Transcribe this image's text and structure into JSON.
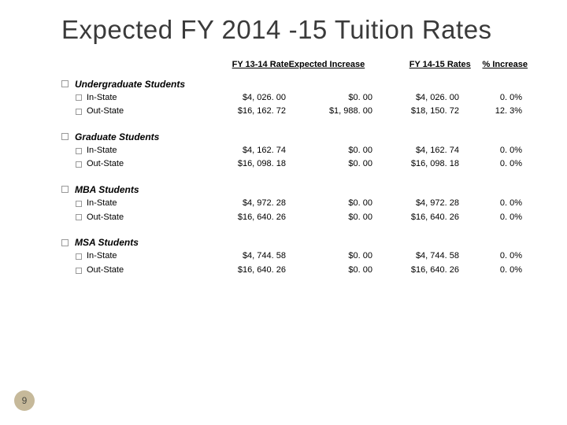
{
  "title": "Expected FY 2014 -15 Tuition Rates",
  "headers": {
    "c1": "FY 13-14 Rate",
    "c2": "Expected Increase",
    "c3": "FY 14-15 Rates",
    "c4": "% Increase"
  },
  "groups": [
    {
      "name": "Undergraduate Students",
      "rows": [
        {
          "label": "In-State",
          "c1": "$4, 026. 00",
          "c2": "$0. 00",
          "c3": "$4, 026. 00",
          "c4": "0. 0%"
        },
        {
          "label": "Out-State",
          "c1": "$16, 162. 72",
          "c2": "$1, 988. 00",
          "c3": "$18, 150. 72",
          "c4": "12. 3%"
        }
      ]
    },
    {
      "name": "Graduate Students",
      "rows": [
        {
          "label": "In-State",
          "c1": "$4, 162. 74",
          "c2": "$0. 00",
          "c3": "$4, 162. 74",
          "c4": "0. 0%"
        },
        {
          "label": "Out-State",
          "c1": "$16, 098. 18",
          "c2": "$0. 00",
          "c3": "$16, 098. 18",
          "c4": "0. 0%"
        }
      ]
    },
    {
      "name": "MBA Students",
      "rows": [
        {
          "label": "In-State",
          "c1": "$4, 972. 28",
          "c2": "$0. 00",
          "c3": "$4, 972. 28",
          "c4": "0. 0%"
        },
        {
          "label": "Out-State",
          "c1": "$16, 640. 26",
          "c2": "$0. 00",
          "c3": "$16, 640. 26",
          "c4": "0. 0%"
        }
      ]
    },
    {
      "name": "MSA Students",
      "rows": [
        {
          "label": "In-State",
          "c1": "$4, 744. 58",
          "c2": "$0. 00",
          "c3": "$4, 744. 58",
          "c4": "0. 0%"
        },
        {
          "label": "Out-State",
          "c1": "$16, 640. 26",
          "c2": "$0. 00",
          "c3": "$16, 640. 26",
          "c4": "0. 0%"
        }
      ]
    }
  ],
  "page_number": "9",
  "colors": {
    "background": "#ffffff",
    "title_color": "#3a3a3a",
    "text_color": "#000000",
    "box_border": "#999999",
    "pagenum_bg": "#c6b99a",
    "pagenum_text": "#4a4a42"
  }
}
